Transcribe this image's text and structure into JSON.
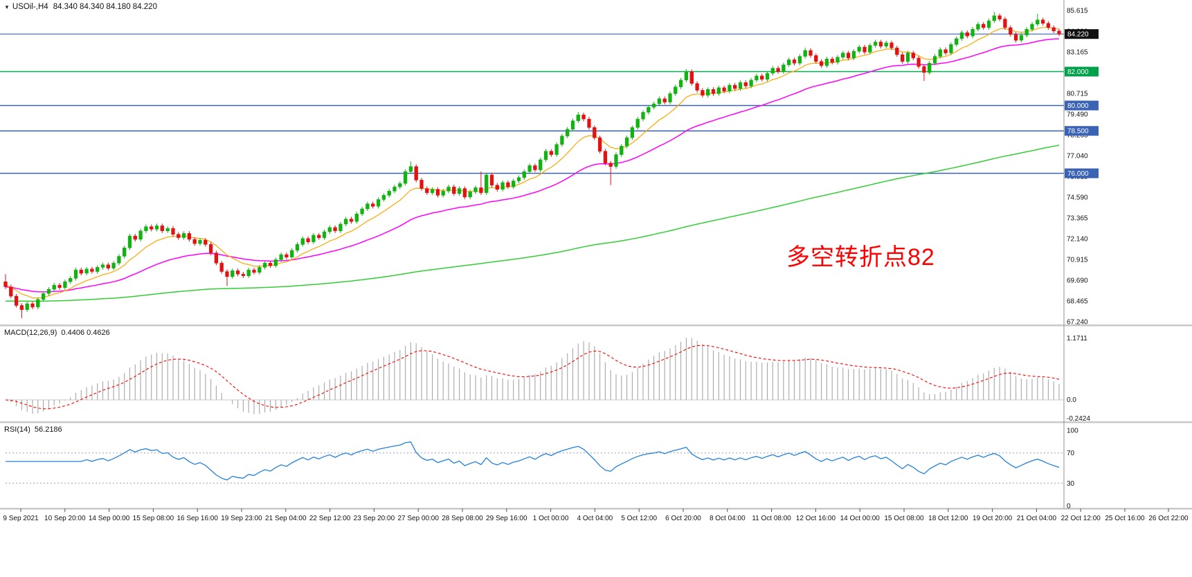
{
  "header": {
    "dropdown_icon": "▼",
    "symbol_period": "USOil-,H4",
    "ohlc_readout": "84.340 84.340 84.180 84.220"
  },
  "annotation": {
    "text": "多空转折点82",
    "color": "#FF0000"
  },
  "chart_data": [
    {
      "type": "candlestick",
      "title": "USOil-,H4",
      "symbol": "USOil-",
      "timeframe": "H4",
      "y_axis": {
        "range": [
          67.24,
          85.615
        ],
        "ticks": [
          85.615,
          84.39,
          83.165,
          81.94,
          80.715,
          79.49,
          78.265,
          77.04,
          75.815,
          74.59,
          73.365,
          72.14,
          70.915,
          69.69,
          68.465,
          67.24
        ]
      },
      "x_labels": [
        "9 Sep 2021",
        "10 Sep 20:00",
        "14 Sep 00:00",
        "15 Sep 08:00",
        "16 Sep 16:00",
        "19 Sep 23:00",
        "21 Sep 04:00",
        "22 Sep 12:00",
        "23 Sep 20:00",
        "27 Sep 00:00",
        "28 Sep 08:00",
        "29 Sep 16:00",
        "1 Oct 00:00",
        "4 Oct 04:00",
        "5 Oct 12:00",
        "6 Oct 20:00",
        "8 Oct 04:00",
        "11 Oct 08:00",
        "12 Oct 16:00",
        "14 Oct 00:00",
        "15 Oct 08:00",
        "18 Oct 12:00",
        "19 Oct 20:00",
        "21 Oct 04:00",
        "22 Oct 12:00",
        "25 Oct 16:00",
        "26 Oct 22:00"
      ],
      "first_open": 69.6,
      "closes": [
        69.3,
        68.75,
        68.2,
        67.95,
        68.3,
        68.1,
        68.55,
        68.9,
        69.15,
        69.4,
        69.25,
        69.6,
        69.8,
        70.3,
        70.1,
        70.35,
        70.2,
        70.45,
        70.6,
        70.4,
        70.7,
        71.1,
        71.6,
        72.3,
        72.1,
        72.6,
        72.85,
        72.7,
        72.9,
        72.6,
        72.75,
        72.4,
        72.2,
        72.45,
        72.1,
        71.85,
        72.05,
        71.8,
        71.3,
        70.7,
        70.2,
        69.9,
        70.25,
        70.05,
        69.95,
        70.3,
        70.15,
        70.45,
        70.7,
        70.55,
        70.9,
        71.2,
        71.05,
        71.45,
        71.8,
        72.15,
        71.95,
        72.35,
        72.2,
        72.55,
        72.8,
        72.6,
        73.0,
        73.3,
        73.15,
        73.6,
        73.9,
        74.2,
        74.05,
        74.45,
        74.7,
        74.95,
        75.2,
        75.4,
        76.1,
        76.4,
        75.6,
        75.1,
        74.85,
        75.05,
        74.7,
        74.95,
        75.2,
        74.8,
        75.1,
        74.6,
        74.9,
        75.15,
        74.85,
        75.9,
        75.3,
        75.05,
        75.45,
        75.2,
        75.55,
        75.75,
        76.1,
        76.45,
        76.2,
        76.8,
        77.3,
        77.1,
        77.7,
        78.2,
        78.6,
        79.1,
        79.45,
        79.2,
        78.7,
        78.1,
        77.3,
        76.6,
        76.4,
        77.1,
        77.6,
        78.1,
        78.7,
        79.2,
        79.6,
        79.9,
        80.1,
        80.4,
        80.2,
        80.7,
        81.1,
        81.5,
        82.0,
        81.3,
        80.9,
        80.6,
        80.95,
        80.7,
        81.05,
        80.85,
        81.2,
        81.0,
        81.35,
        81.15,
        81.5,
        81.75,
        81.55,
        81.9,
        82.2,
        82.0,
        82.4,
        82.7,
        82.5,
        82.9,
        83.25,
        82.95,
        82.6,
        82.35,
        82.75,
        82.55,
        82.85,
        83.1,
        82.8,
        83.2,
        83.45,
        83.15,
        83.55,
        83.75,
        83.5,
        83.7,
        83.4,
        83.0,
        82.6,
        83.1,
        82.8,
        82.3,
        81.95,
        82.5,
        82.9,
        83.3,
        83.1,
        83.6,
        83.95,
        84.3,
        84.1,
        84.5,
        84.8,
        84.6,
        85.0,
        85.3,
        85.1,
        84.6,
        84.2,
        83.85,
        84.15,
        84.5,
        84.8,
        85.05,
        84.85,
        84.6,
        84.4,
        84.22
      ],
      "spikes": [
        {
          "i": 0,
          "high": 70.05
        },
        {
          "i": 3,
          "low": 67.45
        },
        {
          "i": 41,
          "low": 69.35
        },
        {
          "i": 75,
          "high": 76.7
        },
        {
          "i": 88,
          "high": 76.1
        },
        {
          "i": 106,
          "high": 79.62
        },
        {
          "i": 112,
          "low": 75.3
        },
        {
          "i": 126,
          "high": 82.15
        },
        {
          "i": 148,
          "high": 83.42
        },
        {
          "i": 170,
          "low": 81.45
        },
        {
          "i": 183,
          "high": 85.52
        },
        {
          "i": 191,
          "high": 85.42
        }
      ],
      "hlines": [
        {
          "price": 84.22,
          "label": "84.220",
          "line_color": "#3A62B5",
          "badge_bg": "#111111",
          "current": true
        },
        {
          "price": 82.0,
          "label": "82.000",
          "line_color": "#00B050",
          "badge_bg": "#00A14B",
          "current": false
        },
        {
          "price": 80.0,
          "label": "80.000",
          "line_color": "#3A62B5",
          "badge_bg": "#3A62B5",
          "current": false
        },
        {
          "price": 78.5,
          "label": "78.500",
          "line_color": "#3A62B5",
          "badge_bg": "#3A62B5",
          "current": false
        },
        {
          "price": 76.0,
          "label": "76.000",
          "line_color": "#3A62B5",
          "badge_bg": "#3A62B5",
          "current": false
        }
      ],
      "colors": {
        "up": "#12b212",
        "down": "#e31212",
        "ma_fast": "#FFA500",
        "ma_mid": "#FF00FF",
        "ma_slow": "#32CD32",
        "hline_blue": "#3A62B5",
        "hline_green": "#00B050"
      }
    },
    {
      "type": "macd",
      "label_name": "MACD(12,26,9)",
      "label_values": "0.4406 0.4626",
      "params": [
        12,
        26,
        9
      ],
      "axis_ticks": [
        "1.1711",
        "0.0",
        "-0.2424"
      ],
      "colors": {
        "histogram": "#a6a6a6",
        "signal": "#ff0000",
        "zero_line": "#c8c8c8"
      }
    },
    {
      "type": "rsi",
      "label_name": "RSI(14)",
      "label_value": "56.2186",
      "period": 14,
      "axis_ticks": [
        "100",
        "70",
        "30",
        "0"
      ],
      "levels": [
        70,
        30
      ],
      "color": "#2080df",
      "level_line_color": "#9a9ac0"
    }
  ]
}
